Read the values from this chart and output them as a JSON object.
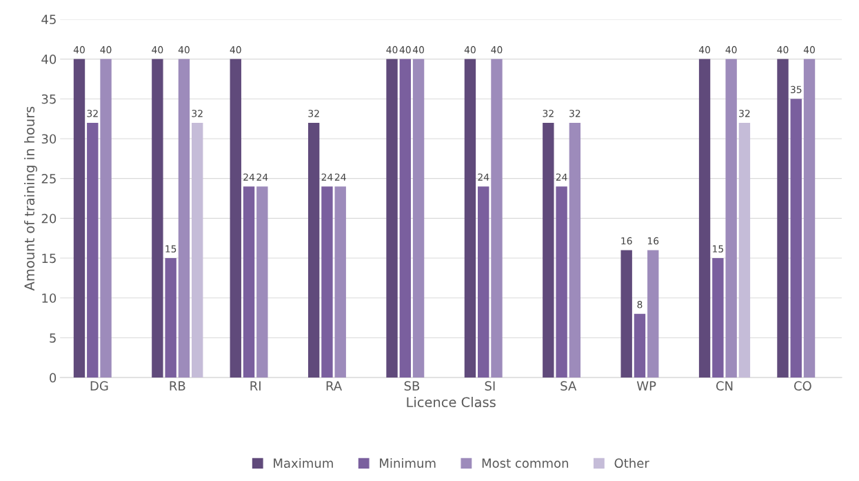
{
  "chart_data": {
    "type": "bar",
    "xlabel": "Licence Class",
    "ylabel": "Amount of training in hours",
    "categories": [
      "DG",
      "RB",
      "RI",
      "RA",
      "SB",
      "SI",
      "SA",
      "WP",
      "CN",
      "CO"
    ],
    "series": [
      {
        "name": "Maximum",
        "color": "#604a7b",
        "values": [
          40,
          40,
          40,
          32,
          40,
          40,
          32,
          16,
          40,
          40
        ]
      },
      {
        "name": "Minimum",
        "color": "#7a5f9e",
        "values": [
          32,
          15,
          24,
          24,
          40,
          24,
          24,
          8,
          15,
          35
        ]
      },
      {
        "name": "Most common",
        "color": "#9d8bbb",
        "values": [
          40,
          40,
          24,
          24,
          40,
          40,
          32,
          16,
          40,
          40
        ]
      },
      {
        "name": "Other",
        "color": "#c5bcd8",
        "values": [
          null,
          32,
          null,
          null,
          null,
          null,
          null,
          null,
          32,
          null
        ]
      }
    ],
    "ylim": [
      0,
      45
    ],
    "yticks": [
      0,
      5,
      10,
      15,
      20,
      25,
      30,
      35,
      40,
      45
    ],
    "grid": "y",
    "legend": "bottom",
    "data_labels": true
  }
}
